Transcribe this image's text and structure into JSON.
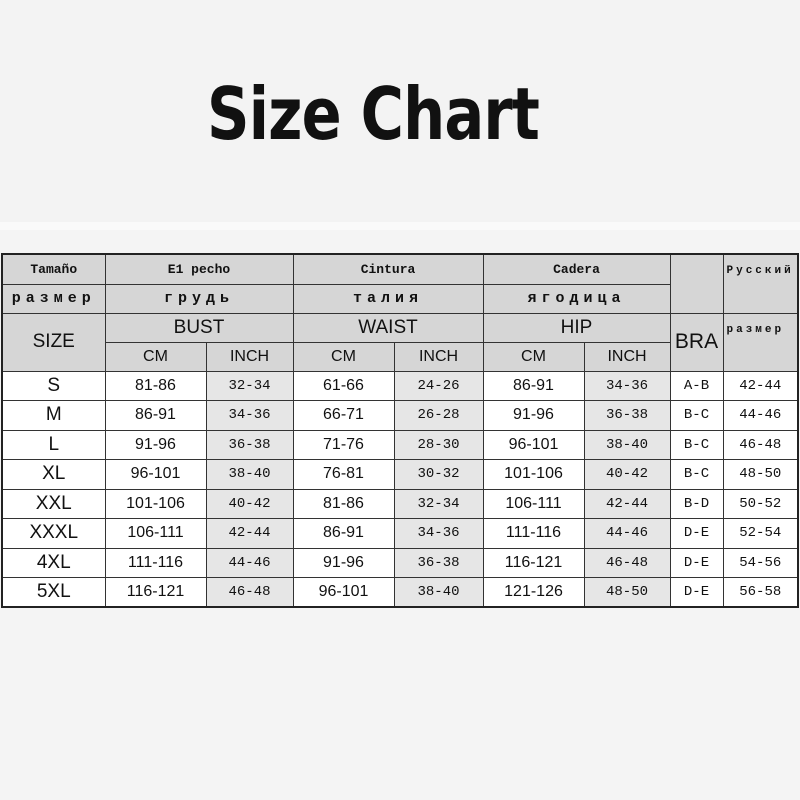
{
  "title": "Size Chart",
  "header": {
    "row1": {
      "size": "Tamaño",
      "bust": "E1 pecho",
      "waist": "Cintura",
      "hip": "Cadera",
      "russian": "Русский"
    },
    "row2": {
      "size": "размер",
      "bust": "грудь",
      "waist": "талия",
      "hip": "ягодица"
    },
    "row3": {
      "size": "SIZE",
      "bust": "BUST",
      "waist": "WAIST",
      "hip": "HIP",
      "bra": "BRA",
      "russian": "размер"
    },
    "units": {
      "cm": "CM",
      "inch": "INCH"
    }
  },
  "rows": [
    {
      "size": "S",
      "bust_cm": "81-86",
      "bust_in": "32-34",
      "waist_cm": "61-66",
      "waist_in": "24-26",
      "hip_cm": "86-91",
      "hip_in": "34-36",
      "bra": "A-B",
      "ru": "42-44"
    },
    {
      "size": "M",
      "bust_cm": "86-91",
      "bust_in": "34-36",
      "waist_cm": "66-71",
      "waist_in": "26-28",
      "hip_cm": "91-96",
      "hip_in": "36-38",
      "bra": "B-C",
      "ru": "44-46"
    },
    {
      "size": "L",
      "bust_cm": "91-96",
      "bust_in": "36-38",
      "waist_cm": "71-76",
      "waist_in": "28-30",
      "hip_cm": "96-101",
      "hip_in": "38-40",
      "bra": "B-C",
      "ru": "46-48"
    },
    {
      "size": "XL",
      "bust_cm": "96-101",
      "bust_in": "38-40",
      "waist_cm": "76-81",
      "waist_in": "30-32",
      "hip_cm": "101-106",
      "hip_in": "40-42",
      "bra": "B-C",
      "ru": "48-50"
    },
    {
      "size": "XXL",
      "bust_cm": "101-106",
      "bust_in": "40-42",
      "waist_cm": "81-86",
      "waist_in": "32-34",
      "hip_cm": "106-111",
      "hip_in": "42-44",
      "bra": "B-D",
      "ru": "50-52"
    },
    {
      "size": "XXXL",
      "bust_cm": "106-111",
      "bust_in": "42-44",
      "waist_cm": "86-91",
      "waist_in": "34-36",
      "hip_cm": "111-116",
      "hip_in": "44-46",
      "bra": "D-E",
      "ru": "52-54"
    },
    {
      "size": "4XL",
      "bust_cm": "111-116",
      "bust_in": "44-46",
      "waist_cm": "91-96",
      "waist_in": "36-38",
      "hip_cm": "116-121",
      "hip_in": "46-48",
      "bra": "D-E",
      "ru": "54-56"
    },
    {
      "size": "5XL",
      "bust_cm": "116-121",
      "bust_in": "46-48",
      "waist_cm": "96-101",
      "waist_in": "38-40",
      "hip_cm": "121-126",
      "hip_in": "48-50",
      "bra": "D-E",
      "ru": "56-58"
    }
  ]
}
